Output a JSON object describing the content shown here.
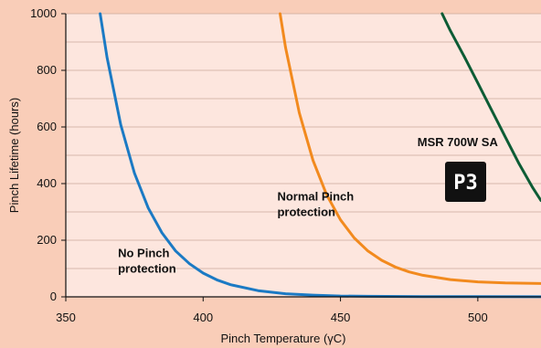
{
  "chart_data": {
    "type": "line",
    "xlabel": "Pinch Temperature (γC)",
    "ylabel": "Pinch Lifetime (hours)",
    "xlim": [
      350,
      523
    ],
    "ylim": [
      0,
      1000
    ],
    "xticks": [
      350,
      400,
      450,
      500
    ],
    "yticks": [
      0,
      200,
      400,
      600,
      800,
      1000
    ],
    "grid": true,
    "series": [
      {
        "color": "#1b7ac4",
        "x": [
          362.5,
          365,
          370,
          375,
          380,
          385,
          390,
          395,
          400,
          405,
          410,
          420,
          430,
          440,
          450,
          460,
          480,
          500,
          523
        ],
        "y": [
          1000,
          846,
          608,
          437,
          314,
          226,
          162,
          117,
          84,
          60,
          43,
          22,
          11,
          6,
          3,
          2,
          1,
          0.5,
          0.2
        ]
      },
      {
        "color": "#f28a1e",
        "x": [
          428,
          430,
          435,
          440,
          445,
          450,
          455,
          460,
          465,
          470,
          475,
          480,
          490,
          500,
          510,
          523
        ],
        "y": [
          1000,
          880,
          650,
          482,
          360,
          272,
          208,
          162,
          129,
          105,
          88,
          76,
          61,
          53,
          49,
          47
        ]
      },
      {
        "color": "#0d5c35",
        "x": [
          487,
          490,
          495,
          500,
          505,
          510,
          515,
          520,
          523
        ],
        "y": [
          1000,
          940,
          850,
          755,
          660,
          565,
          470,
          385,
          340
        ]
      }
    ],
    "annotations": [
      {
        "lines": [
          "No Pinch",
          "protection"
        ],
        "x": 369,
        "y": 140
      },
      {
        "lines": [
          "Normal Pinch",
          "protection"
        ],
        "x": 427,
        "y": 340
      },
      {
        "lines": [
          "MSR 700W SA"
        ],
        "x": 478,
        "y": 532
      }
    ]
  },
  "badge": {
    "text": "P3",
    "color": "#111111"
  },
  "colors": {
    "background": "#f9cdb8",
    "plot_background": "#fde6de",
    "grid": "#c9a89b"
  }
}
